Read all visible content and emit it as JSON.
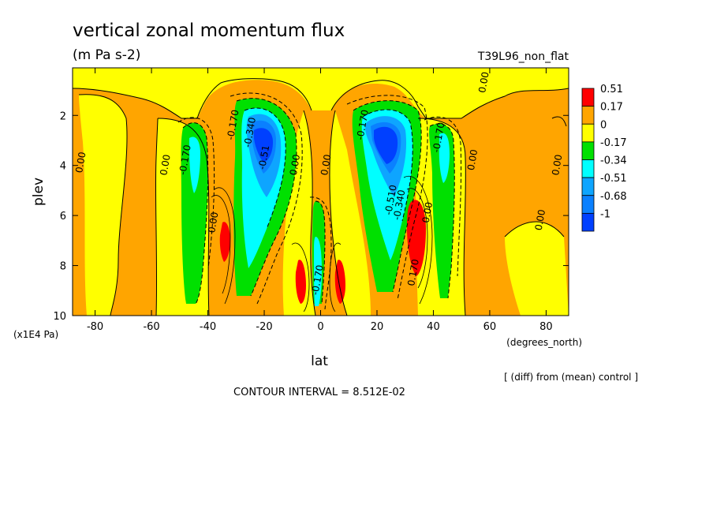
{
  "chart_data": {
    "type": "heatmap",
    "title": "vertical zonal momentum flux",
    "subtitle": "(m Pa s-2)",
    "experiment_label": "T39L96_non_flat",
    "xlabel": "lat",
    "ylabel": "plev",
    "x_unit": "(degrees_north)",
    "y_unit": "(x1E4 Pa)",
    "xlim": [
      -88,
      88
    ],
    "ylim": [
      10,
      0.1
    ],
    "x_ticks": [
      {
        "value": -80,
        "label": "-80"
      },
      {
        "value": -60,
        "label": "-60"
      },
      {
        "value": -40,
        "label": "-40"
      },
      {
        "value": -20,
        "label": "-20"
      },
      {
        "value": 0,
        "label": "0"
      },
      {
        "value": 20,
        "label": "20"
      },
      {
        "value": 40,
        "label": "40"
      },
      {
        "value": 60,
        "label": "60"
      },
      {
        "value": 80,
        "label": "80"
      }
    ],
    "y_ticks": [
      {
        "value": 2,
        "label": "2"
      },
      {
        "value": 4,
        "label": "4"
      },
      {
        "value": 6,
        "label": "6"
      },
      {
        "value": 8,
        "label": "8"
      },
      {
        "value": 10,
        "label": "10"
      }
    ],
    "colorbar": {
      "colors": [
        "#ff0000",
        "#ffa500",
        "#ffff00",
        "#00e000",
        "#00ffff",
        "#0ea5ff",
        "#0a80ff",
        "#0040ff"
      ],
      "labels": [
        "0.51",
        "0.17",
        "0",
        "-0.17",
        "-0.34",
        "-0.51",
        "-0.68",
        "-1"
      ]
    },
    "contour_labels": [
      {
        "x": -84,
        "y": 3.9,
        "text": "0.00"
      },
      {
        "x": -54,
        "y": 4.0,
        "text": "0.00"
      },
      {
        "x": -47,
        "y": 3.8,
        "text": "-0.170"
      },
      {
        "x": -30,
        "y": 2.4,
        "text": "-0.170"
      },
      {
        "x": -24,
        "y": 2.7,
        "text": "-0.340"
      },
      {
        "x": -19,
        "y": 3.7,
        "text": "-0.51"
      },
      {
        "x": -37,
        "y": 6.3,
        "text": "0.00"
      },
      {
        "x": -8,
        "y": 4.0,
        "text": "0.00"
      },
      {
        "x": 3,
        "y": 4.0,
        "text": "0.00"
      },
      {
        "x": 16,
        "y": 2.4,
        "text": "-0.170"
      },
      {
        "x": 29,
        "y": 5.6,
        "text": "-0.340"
      },
      {
        "x": 26,
        "y": 5.4,
        "text": "-0.510"
      },
      {
        "x": 34,
        "y": 8.3,
        "text": "0.170"
      },
      {
        "x": 39,
        "y": 5.9,
        "text": "0.00"
      },
      {
        "x": 43,
        "y": 2.9,
        "text": "-0.170"
      },
      {
        "x": 55,
        "y": 3.8,
        "text": "0.00"
      },
      {
        "x": 59,
        "y": 0.7,
        "text": "0.00"
      },
      {
        "x": 79,
        "y": 6.2,
        "text": "0.00"
      },
      {
        "x": 85,
        "y": 4.0,
        "text": "0.00"
      },
      {
        "x": 0,
        "y": 8.6,
        "text": "-0.170"
      }
    ]
  },
  "footer": {
    "diff_note": "[ (diff) from (mean) control ]",
    "contour_interval": "CONTOUR INTERVAL = 8.512E-02"
  },
  "colors": {
    "red": "#ff0000",
    "orange": "#ffa500",
    "yellow": "#ffff00",
    "green": "#00e000",
    "cyan": "#00ffff",
    "blue1": "#0ea5ff",
    "blue2": "#0a80ff",
    "blue3": "#0040ff"
  }
}
